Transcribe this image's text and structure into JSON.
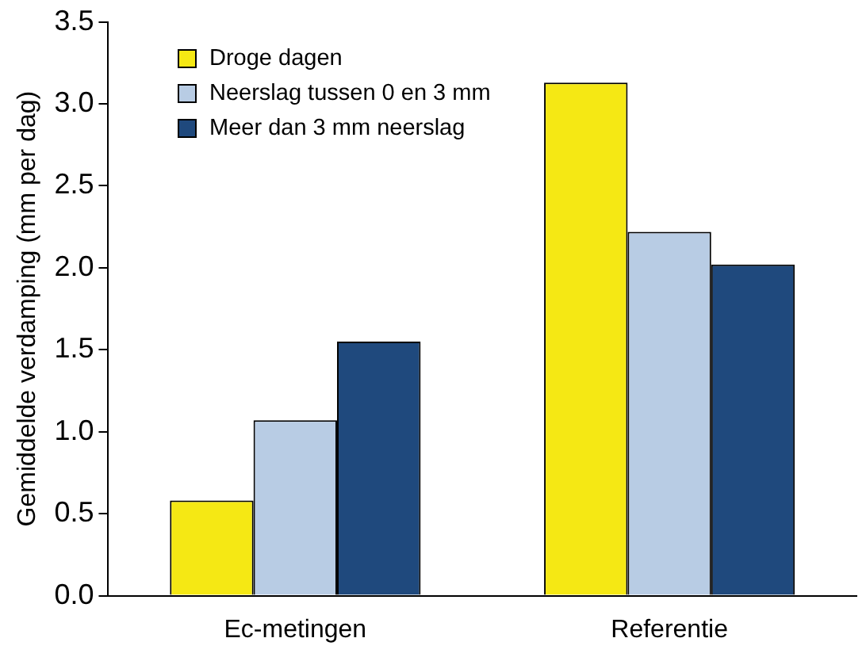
{
  "chart_data": {
    "type": "bar",
    "ylabel": "Gemiddelde verdamping (mm per dag)",
    "categories": [
      "Ec-metingen",
      "Referentie"
    ],
    "series": [
      {
        "name": "Droge dagen",
        "color": "#f5e814",
        "values": [
          0.58,
          3.13
        ]
      },
      {
        "name": "Neerslag tussen 0 en 3 mm",
        "color": "#b8cce4",
        "values": [
          1.07,
          2.22
        ]
      },
      {
        "name": "Meer dan 3 mm neerslag",
        "color": "#1f497d",
        "values": [
          1.55,
          2.02
        ]
      }
    ],
    "ylim": [
      0,
      3.5
    ],
    "yticks": [
      {
        "value": 0,
        "label": "0.0"
      },
      {
        "value": 0.5,
        "label": "0.5"
      },
      {
        "value": 1,
        "label": "1.0"
      },
      {
        "value": 1.5,
        "label": "1.5"
      },
      {
        "value": 2,
        "label": "2.0"
      },
      {
        "value": 2.5,
        "label": "2.5"
      },
      {
        "value": 3,
        "label": "3.0"
      },
      {
        "value": 3.5,
        "label": "3.5"
      }
    ],
    "grid": false,
    "legend": "top left"
  }
}
